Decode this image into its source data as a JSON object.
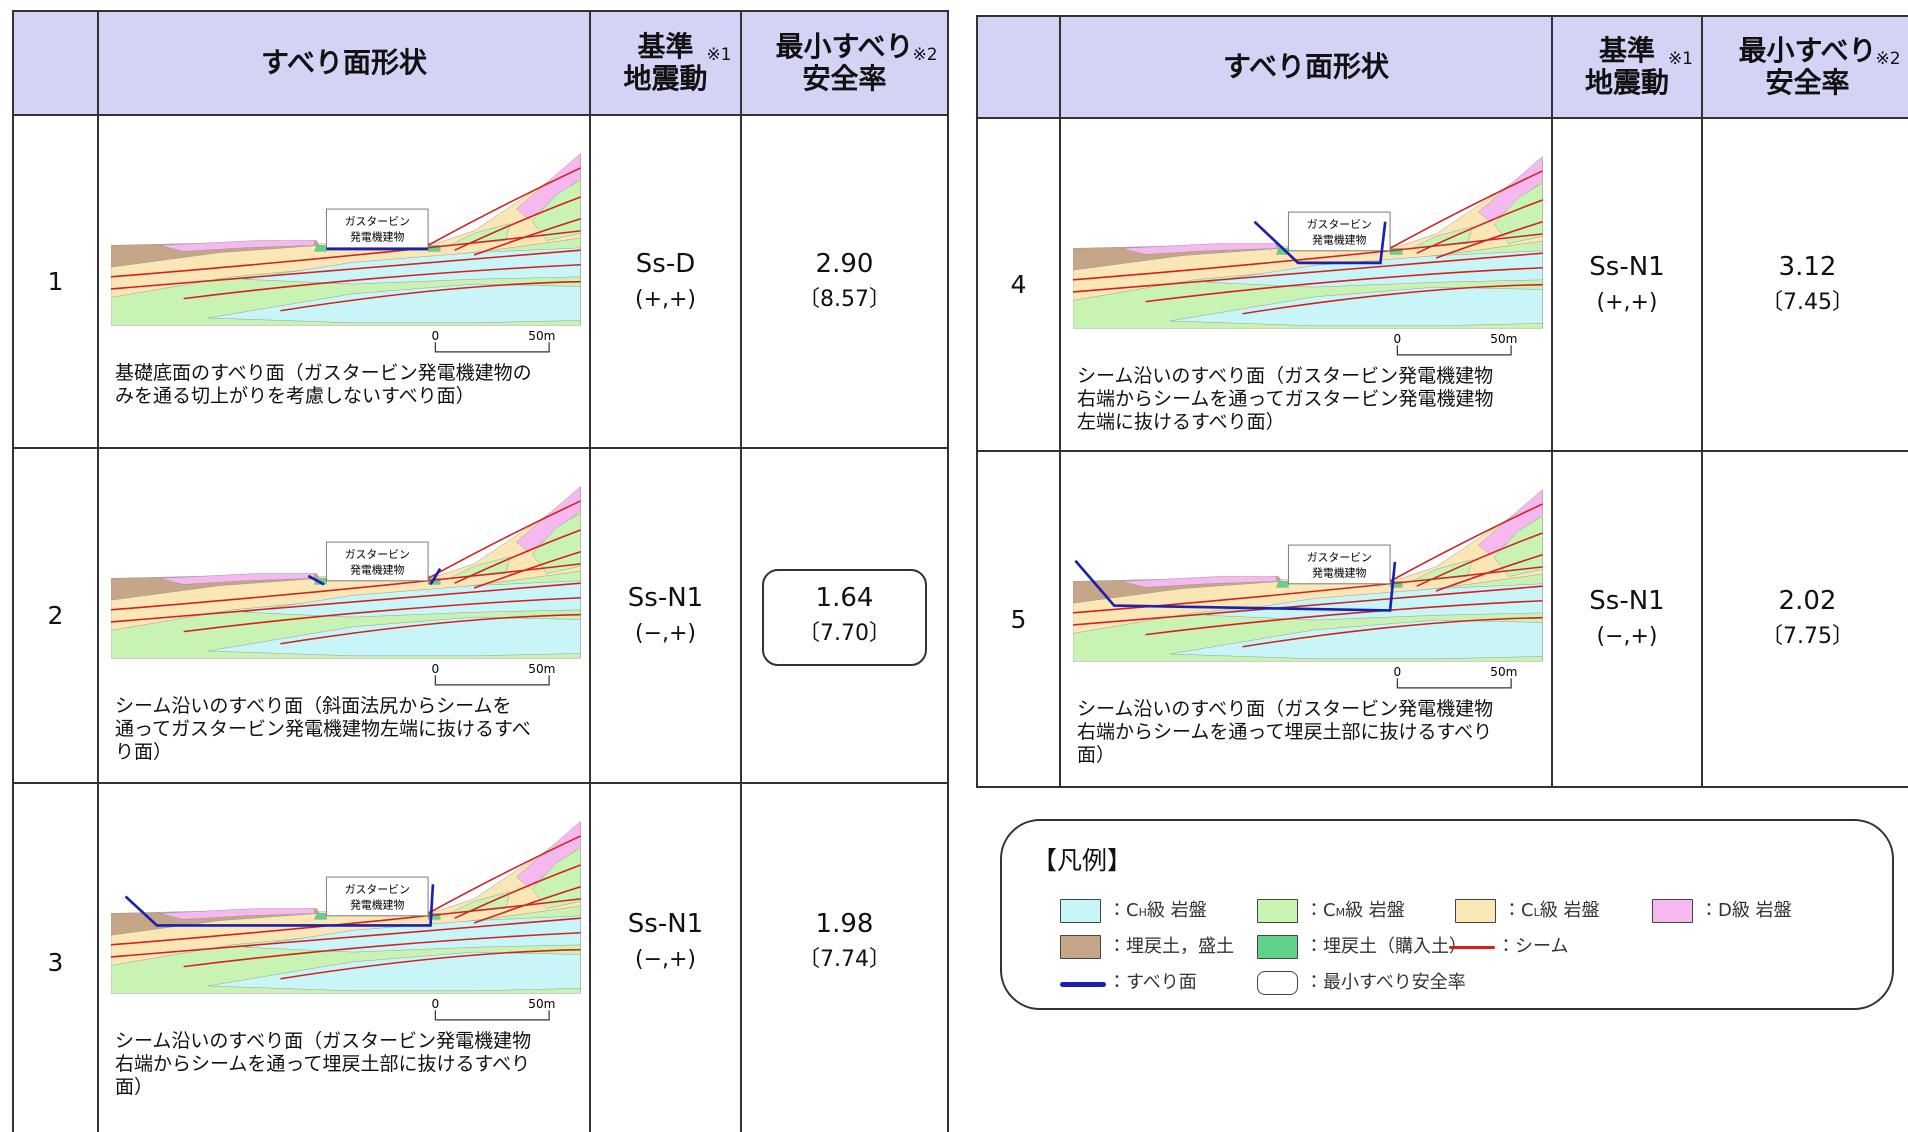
{
  "tables": [
    {
      "header": {
        "shape": "すべり面形状",
        "ground_motion": {
          "lines": [
            "基準",
            "地震動"
          ],
          "note": "※1"
        },
        "safety_factor": {
          "lines": [
            "最小すべり",
            "安全率"
          ],
          "note": "※2"
        }
      },
      "rows": [
        {
          "no": "1",
          "building": [
            "ガスタービン",
            "発電機建物"
          ],
          "scale": [
            "0",
            "50m"
          ],
          "caption": [
            "基礎底面のすべり面（ガスタービン発電機建物の",
            "みを通る切上がりを考慮しないすべり面）"
          ],
          "ground_motion": "Ss-D",
          "sign": "(+,+)",
          "safety_factor": "2.90",
          "reference": "〔8.57〕",
          "minimum": false
        },
        {
          "no": "2",
          "building": [
            "ガスタービン",
            "発電機建物"
          ],
          "scale": [
            "0",
            "50m"
          ],
          "caption": [
            "シーム沿いのすべり面（斜面法尻からシームを",
            "通ってガスタービン発電機建物左端に抜けるすべ",
            "り面）"
          ],
          "ground_motion": "Ss-N1",
          "sign": "(−,+)",
          "safety_factor": "1.64",
          "reference": "〔7.70〕",
          "minimum": true
        },
        {
          "no": "3",
          "building": [
            "ガスタービン",
            "発電機建物"
          ],
          "scale": [
            "0",
            "50m"
          ],
          "caption": [
            "シーム沿いのすべり面（ガスタービン発電機建物",
            "右端からシームを通って埋戻土部に抜けるすべり",
            "面）"
          ],
          "ground_motion": "Ss-N1",
          "sign": "(−,+)",
          "safety_factor": "1.98",
          "reference": "〔7.74〕",
          "minimum": false
        }
      ]
    },
    {
      "header": {
        "shape": "すべり面形状",
        "ground_motion": {
          "lines": [
            "基準",
            "地震動"
          ],
          "note": "※1"
        },
        "safety_factor": {
          "lines": [
            "最小すべり",
            "安全率"
          ],
          "note": "※2"
        }
      },
      "rows": [
        {
          "no": "4",
          "building": [
            "ガスタービン",
            "発電機建物"
          ],
          "scale": [
            "0",
            "50m"
          ],
          "caption": [
            "シーム沿いのすべり面（ガスタービン発電機建物",
            "右端からシームを通ってガスタービン発電機建物",
            "左端に抜けるすべり面）"
          ],
          "ground_motion": "Ss-N1",
          "sign": "(+,+)",
          "safety_factor": "3.12",
          "reference": "〔7.45〕",
          "minimum": false
        },
        {
          "no": "5",
          "building": [
            "ガスタービン",
            "発電機建物"
          ],
          "scale": [
            "0",
            "50m"
          ],
          "caption": [
            "シーム沿いのすべり面（ガスタービン発電機建物",
            "右端からシームを通って埋戻土部に抜けるすべり",
            "面）"
          ],
          "ground_motion": "Ss-N1",
          "sign": "(−,+)",
          "safety_factor": "2.02",
          "reference": "〔7.75〕",
          "minimum": false
        }
      ]
    }
  ],
  "legend": {
    "title": "【凡例】",
    "items": [
      {
        "kind": "swatch",
        "color": "#c8f6f8",
        "parts": [
          "：C",
          "H",
          "級 岩盤"
        ]
      },
      {
        "kind": "swatch",
        "color": "#c9f3b2",
        "parts": [
          "：C",
          "M",
          "級 岩盤"
        ]
      },
      {
        "kind": "swatch",
        "color": "#fbe6b6",
        "parts": [
          "：C",
          "L",
          "級 岩盤"
        ]
      },
      {
        "kind": "swatch",
        "color": "#f5b9f0",
        "parts": [
          "：D級 岩盤"
        ]
      },
      {
        "kind": "swatch",
        "color": "#c5a688",
        "parts": [
          "：埋戻土，盛土"
        ]
      },
      {
        "kind": "swatch",
        "color": "#5fd38a",
        "parts": [
          "：埋戻土（購入土）"
        ]
      },
      {
        "kind": "line",
        "color": "#d42020",
        "parts": [
          "：シーム"
        ]
      },
      {
        "kind": "line",
        "color": "#1a20b0",
        "parts": [
          "：すべり面"
        ]
      },
      {
        "kind": "box",
        "color": "#ffffff",
        "parts": [
          "：最小すべり安全率"
        ]
      }
    ]
  }
}
